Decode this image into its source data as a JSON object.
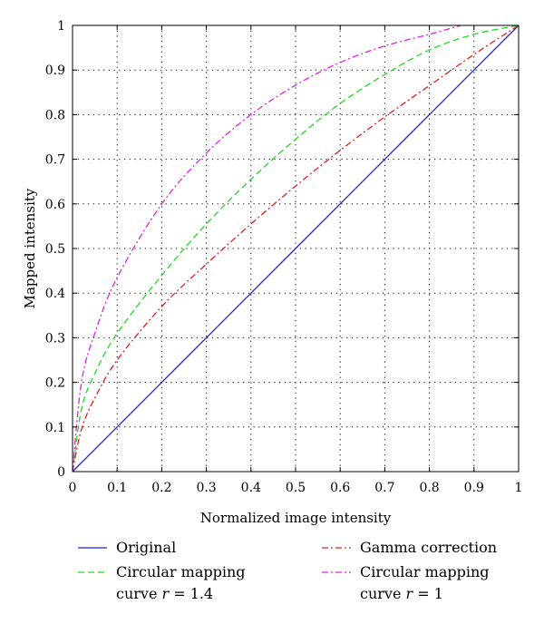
{
  "chart_data": {
    "type": "line",
    "title": "",
    "xlabel": "Normalized image intensity",
    "ylabel": "Mapped intensity",
    "xlim": [
      0,
      1
    ],
    "ylim": [
      0,
      1
    ],
    "grid": true,
    "xticks": [
      "0",
      "0.1",
      "0.2",
      "0.3",
      "0.4",
      "0.5",
      "0.6",
      "0.7",
      "0.8",
      "0.9",
      "1"
    ],
    "yticks": [
      "0",
      "0.1",
      "0.2",
      "0.3",
      "0.4",
      "0.5",
      "0.6",
      "0.7",
      "0.8",
      "0.9",
      "1"
    ],
    "legend_position": "bottom",
    "series": [
      {
        "name": "Original",
        "legend_lines": [
          "Original"
        ],
        "color": "#1f1fd1",
        "style": "solid",
        "x": [
          0,
          0.1,
          0.2,
          0.3,
          0.4,
          0.5,
          0.6,
          0.7,
          0.8,
          0.9,
          1.0
        ],
        "y": [
          0,
          0.1,
          0.2,
          0.3,
          0.4,
          0.5,
          0.6,
          0.7,
          0.8,
          0.9,
          1.0
        ]
      },
      {
        "name": "Gamma correction",
        "legend_lines": [
          "Gamma correction"
        ],
        "color": "#e0201c",
        "style": "dashdot",
        "x": [
          0,
          0.02,
          0.05,
          0.1,
          0.2,
          0.3,
          0.4,
          0.5,
          0.6,
          0.7,
          0.8,
          0.9,
          1.0
        ],
        "y": [
          0,
          0.095,
          0.165,
          0.25,
          0.37,
          0.465,
          0.555,
          0.64,
          0.72,
          0.795,
          0.865,
          0.935,
          1.0
        ]
      },
      {
        "name": "Circular mapping curve r = 1.4",
        "legend_lines": [
          "Circular mapping",
          "curve r = 1.4"
        ],
        "color": "#22d822",
        "style": "dashed",
        "x": [
          0,
          0.02,
          0.05,
          0.1,
          0.2,
          0.3,
          0.4,
          0.5,
          0.6,
          0.7,
          0.8,
          0.9,
          1.0
        ],
        "y": [
          0,
          0.14,
          0.22,
          0.31,
          0.44,
          0.555,
          0.655,
          0.745,
          0.825,
          0.89,
          0.945,
          0.98,
          1.0
        ]
      },
      {
        "name": "Circular mapping curve r = 1",
        "legend_lines": [
          "Circular mapping",
          "curve r = 1"
        ],
        "color": "#e022e0",
        "style": "dashdot",
        "x": [
          0,
          0.02,
          0.05,
          0.1,
          0.2,
          0.3,
          0.4,
          0.5,
          0.6,
          0.7,
          0.8,
          0.87
        ],
        "y": [
          0,
          0.2,
          0.31,
          0.435,
          0.6,
          0.714,
          0.8,
          0.866,
          0.917,
          0.954,
          0.98,
          1.0
        ]
      }
    ]
  }
}
